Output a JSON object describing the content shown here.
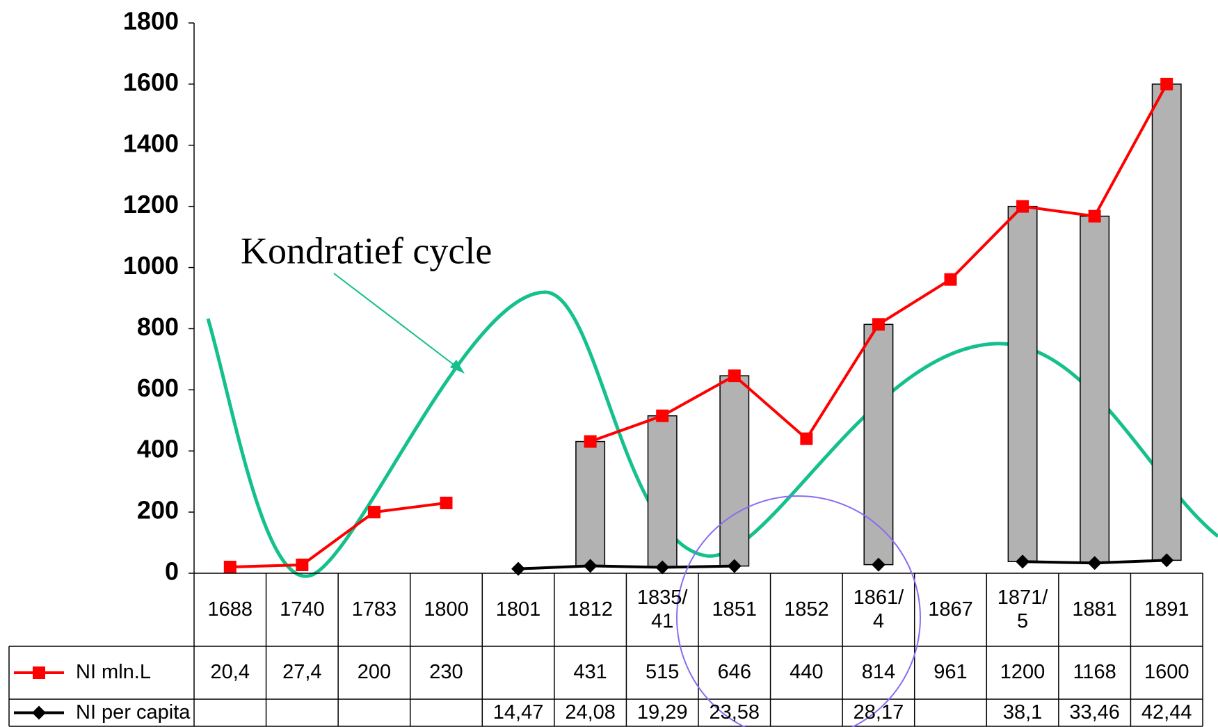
{
  "chart_data": {
    "type": "line",
    "categories": [
      "1688",
      "1740",
      "1783",
      "1800",
      "1801",
      "1812",
      "1835/\n41",
      "1851",
      "1852",
      "1861/\n4",
      "1867",
      "1871/\n5",
      "1881",
      "1891"
    ],
    "series": [
      {
        "name": "NI mln.L",
        "color": "#ff0000",
        "marker": "square",
        "values": [
          20.4,
          27.4,
          200,
          230,
          null,
          431,
          515,
          646,
          440,
          814,
          961,
          1200,
          1168,
          1600
        ],
        "value_labels": [
          "20,4",
          "27,4",
          "200",
          "230",
          null,
          "431",
          "515",
          "646",
          "440",
          "814",
          "961",
          "1200",
          "1168",
          "1600"
        ]
      },
      {
        "name": "NI per capita",
        "color": "#000000",
        "marker": "diamond",
        "values": [
          null,
          null,
          null,
          null,
          14.47,
          24.08,
          19.29,
          23.58,
          null,
          28.17,
          null,
          38.1,
          33.46,
          42.44
        ],
        "value_labels": [
          null,
          null,
          null,
          null,
          "14,47",
          "24,08",
          "19,29",
          "23,58",
          null,
          "28,17",
          null,
          "38,1",
          "33,46",
          "42,44"
        ]
      }
    ],
    "up_down_bars": true,
    "bar_color": "#b2b2b2",
    "ylim": [
      0,
      1800
    ],
    "yticks": [
      0,
      200,
      400,
      600,
      800,
      1000,
      1200,
      1400,
      1600,
      1800
    ],
    "annotation": "Kondratief cycle",
    "data_table": true
  }
}
